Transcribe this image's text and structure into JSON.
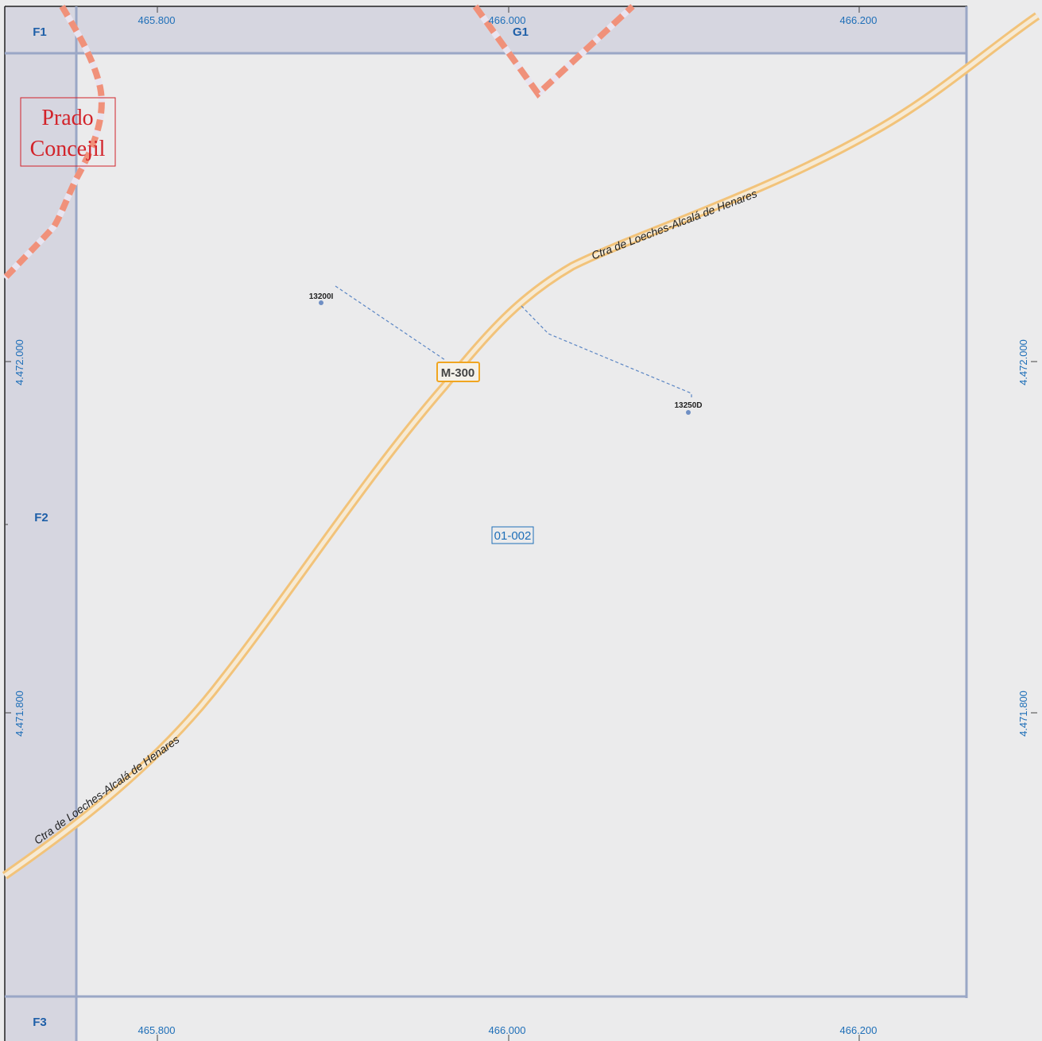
{
  "grid": {
    "x_labels": [
      "465.800",
      "466.000",
      "466.200"
    ],
    "y_labels": [
      "4.472.000",
      "4.471.800"
    ],
    "cells": [
      "F1",
      "G1",
      "F2",
      "F3"
    ]
  },
  "road": {
    "name": "Ctra de Loeches-Alcalá de Henares",
    "shield": "M-300"
  },
  "kilometer_points": [
    {
      "label": "13200I"
    },
    {
      "label": "13250D"
    }
  ],
  "place_name": {
    "line1": "Prado",
    "line2": "Concejil"
  },
  "sheet_id": "01-002",
  "colors": {
    "background": "#ebebec",
    "margin": "#d6d6e0",
    "grid_line": "#9aa7c6",
    "road": "#f2c37a",
    "road_center": "#f6ead4",
    "boundary": "#f0917a",
    "shield_border": "#f0a520",
    "place_text": "#d2232a",
    "label_blue": "#1f6fb8"
  }
}
